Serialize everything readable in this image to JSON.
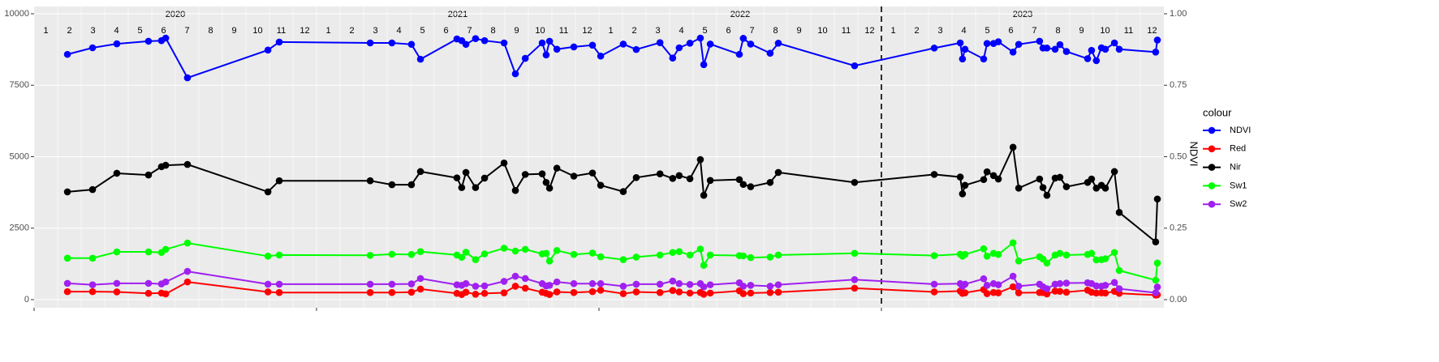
{
  "chart_data": {
    "type": "line",
    "x": [
      2020.118,
      2020.207,
      2020.293,
      2020.405,
      2020.451,
      2020.466,
      2020.543,
      2020.828,
      2020.868,
      2021.19,
      2021.267,
      2021.336,
      2021.368,
      2021.497,
      2021.514,
      2021.529,
      2021.563,
      2021.595,
      2021.664,
      2021.704,
      2021.739,
      2021.799,
      2021.813,
      2021.825,
      2021.851,
      2021.911,
      2021.977,
      2022.006,
      2022.086,
      2022.132,
      2022.216,
      2022.261,
      2022.284,
      2022.322,
      2022.359,
      2022.371,
      2022.394,
      2022.497,
      2022.511,
      2022.537,
      2022.606,
      2022.635,
      2022.905,
      2023.187,
      2023.279,
      2023.287,
      2023.296,
      2023.362,
      2023.374,
      2023.397,
      2023.414,
      2023.466,
      2023.486,
      2023.56,
      2023.572,
      2023.586,
      2023.615,
      2023.632,
      2023.655,
      2023.73,
      2023.744,
      2023.761,
      2023.779,
      2023.793,
      2023.825,
      2023.842,
      2023.971,
      2023.977
    ],
    "series": [
      {
        "name": "NDVI",
        "color": "#0000ff",
        "axis": "y2",
        "values": [
          0.858,
          0.881,
          0.895,
          0.904,
          0.906,
          0.915,
          0.776,
          0.873,
          0.901,
          0.898,
          0.898,
          0.893,
          0.841,
          0.912,
          0.906,
          0.893,
          0.913,
          0.906,
          0.898,
          0.79,
          0.844,
          0.898,
          0.856,
          0.904,
          0.876,
          0.884,
          0.89,
          0.852,
          0.894,
          0.875,
          0.899,
          0.845,
          0.881,
          0.897,
          0.915,
          0.822,
          0.894,
          0.858,
          0.914,
          0.894,
          0.862,
          0.897,
          0.818,
          0.88,
          0.898,
          0.842,
          0.876,
          0.842,
          0.896,
          0.896,
          0.902,
          0.866,
          0.893,
          0.904,
          0.88,
          0.88,
          0.876,
          0.892,
          0.868,
          0.843,
          0.872,
          0.836,
          0.881,
          0.876,
          0.898,
          0.876,
          0.866,
          0.908
        ]
      },
      {
        "name": "Red",
        "color": "#ff0000",
        "values": [
          280,
          280,
          270,
          220,
          230,
          200,
          620,
          270,
          250,
          250,
          250,
          260,
          370,
          220,
          180,
          260,
          190,
          220,
          240,
          470,
          400,
          260,
          220,
          180,
          270,
          250,
          280,
          330,
          210,
          270,
          250,
          320,
          270,
          230,
          250,
          190,
          230,
          310,
          210,
          230,
          250,
          260,
          400,
          270,
          300,
          220,
          240,
          350,
          210,
          250,
          240,
          450,
          240,
          250,
          250,
          200,
          300,
          290,
          260,
          330,
          260,
          230,
          240,
          230,
          290,
          220,
          160,
          170
        ]
      },
      {
        "name": "Nir",
        "color": "#000000",
        "values": [
          3770,
          3850,
          4420,
          4360,
          4650,
          4700,
          4730,
          3770,
          4160,
          4160,
          4020,
          4020,
          4480,
          4260,
          3920,
          4450,
          3920,
          4250,
          4780,
          3820,
          4380,
          4400,
          4100,
          3900,
          4600,
          4320,
          4430,
          4000,
          3780,
          4270,
          4400,
          4240,
          4340,
          4230,
          4900,
          3650,
          4170,
          4200,
          4030,
          3950,
          4100,
          4450,
          4100,
          4380,
          4290,
          3700,
          4000,
          4200,
          4470,
          4340,
          4220,
          5330,
          3900,
          4220,
          3920,
          3650,
          4250,
          4280,
          3950,
          4100,
          4220,
          3900,
          4000,
          3900,
          4480,
          3050,
          2020,
          3520
        ]
      },
      {
        "name": "Sw1",
        "color": "#00ff00",
        "values": [
          1450,
          1450,
          1670,
          1670,
          1650,
          1760,
          1980,
          1520,
          1560,
          1550,
          1590,
          1580,
          1680,
          1560,
          1480,
          1660,
          1400,
          1600,
          1800,
          1700,
          1760,
          1600,
          1620,
          1350,
          1720,
          1580,
          1630,
          1500,
          1400,
          1490,
          1560,
          1650,
          1680,
          1560,
          1770,
          1200,
          1560,
          1540,
          1530,
          1470,
          1490,
          1560,
          1620,
          1540,
          1590,
          1520,
          1580,
          1780,
          1520,
          1620,
          1580,
          1990,
          1350,
          1500,
          1420,
          1280,
          1560,
          1620,
          1560,
          1580,
          1620,
          1390,
          1400,
          1430,
          1650,
          1020,
          680,
          1280
        ]
      },
      {
        "name": "Sw2",
        "color": "#a020f0",
        "values": [
          570,
          520,
          570,
          570,
          550,
          620,
          990,
          540,
          540,
          540,
          540,
          550,
          740,
          520,
          500,
          560,
          470,
          480,
          640,
          820,
          740,
          560,
          480,
          500,
          620,
          560,
          560,
          560,
          470,
          540,
          540,
          650,
          560,
          530,
          560,
          450,
          520,
          590,
          470,
          500,
          470,
          520,
          700,
          540,
          560,
          470,
          540,
          730,
          500,
          560,
          520,
          820,
          470,
          540,
          450,
          380,
          540,
          560,
          580,
          590,
          560,
          480,
          470,
          500,
          600,
          380,
          240,
          440
        ]
      }
    ],
    "xlim": [
      2020,
      2024
    ],
    "xticks": [
      2020,
      2021,
      2022,
      2023
    ],
    "ylim": [
      0,
      10000
    ],
    "yticks": [
      0,
      2500,
      5000,
      7500,
      10000
    ],
    "y2lim": [
      0,
      1
    ],
    "y2ticks": [
      {
        "value": 0,
        "label": "0.00"
      },
      {
        "value": 0.25,
        "label": "0.25"
      },
      {
        "value": 0.5,
        "label": "0.50"
      },
      {
        "value": 0.75,
        "label": "0.75"
      },
      {
        "value": 1,
        "label": "1.00"
      }
    ],
    "y2_label": "NDVI",
    "years": [
      "2020",
      "2021",
      "2022",
      "2023"
    ],
    "months": [
      "1",
      "2",
      "3",
      "4",
      "5",
      "6",
      "7",
      "8",
      "9",
      "10",
      "11",
      "12"
    ],
    "vline": 2023,
    "legend_title": "colour",
    "grid": true
  }
}
